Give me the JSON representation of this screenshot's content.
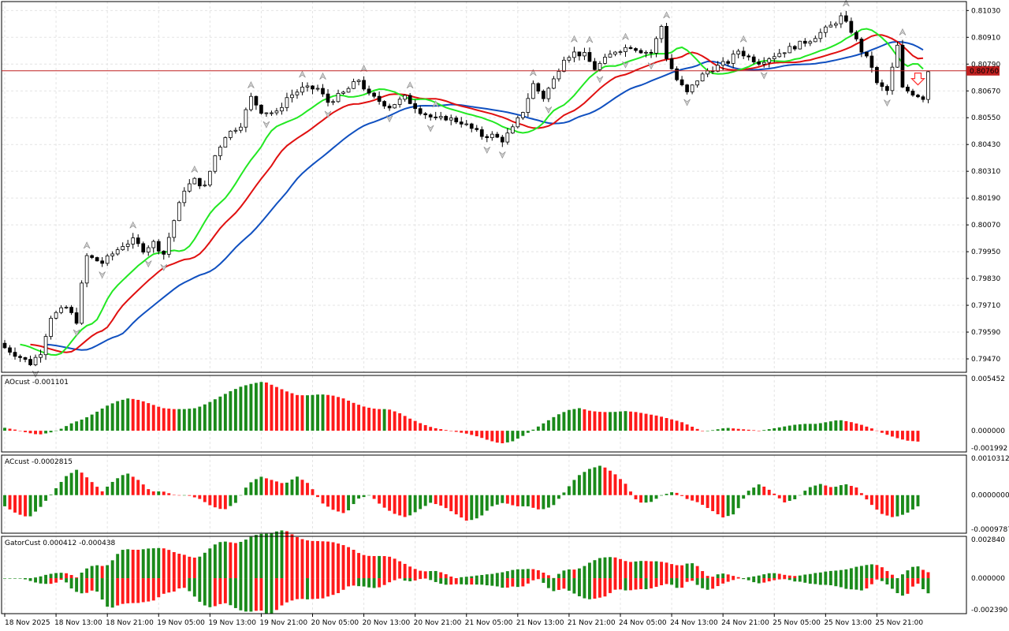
{
  "colors": {
    "bull_candle": "#ffffff",
    "bear_candle": "#000000",
    "lips": "#22e822",
    "teeth": "#e01010",
    "jaw": "#1050c0",
    "hist_up": "#1a8a1a",
    "hist_down": "#ff1a1a",
    "price_line": "#c02020",
    "price_tag": "#c02020",
    "grid": "#e4e4e4"
  },
  "main": {
    "current_price": "0.80760",
    "y_ticks": [
      "0.81030",
      "0.80910",
      "0.80790",
      "0.80670",
      "0.80550",
      "0.80430",
      "0.80310",
      "0.80190",
      "0.80070",
      "0.79950",
      "0.79830",
      "0.79710",
      "0.79590",
      "0.79470"
    ]
  },
  "ao": {
    "label": "AOcust -0.001101",
    "y_ticks": [
      "0.005452",
      "0.000000",
      "-0.001992"
    ]
  },
  "ac": {
    "label": "ACcust -0.0002815",
    "y_ticks": [
      "0.0010312",
      "0.0000000",
      "-0.0009787"
    ]
  },
  "gator": {
    "label": "GatorCust 0.000412 -0.000438",
    "y_ticks": [
      "0.002840",
      "0.000000",
      "-0.002390"
    ]
  },
  "x_ticks": [
    "18 Nov 2025",
    "18 Nov 13:00",
    "18 Nov 21:00",
    "19 Nov 05:00",
    "19 Nov 13:00",
    "19 Nov 21:00",
    "20 Nov 05:00",
    "20 Nov 13:00",
    "20 Nov 21:00",
    "21 Nov 05:00",
    "21 Nov 13:00",
    "21 Nov 21:00",
    "24 Nov 05:00",
    "24 Nov 13:00",
    "24 Nov 21:00",
    "25 Nov 05:00",
    "25 Nov 13:00",
    "25 Nov 21:00"
  ],
  "chart_data": [
    {
      "type": "candlestick",
      "title": "",
      "timeframe_note": "hourly candles",
      "close_path": [
        [
          0,
          0.7952
        ],
        [
          5,
          0.7945
        ],
        [
          7,
          0.795
        ],
        [
          9,
          0.7966
        ],
        [
          12,
          0.797
        ],
        [
          14,
          0.7964
        ],
        [
          15,
          0.798
        ],
        [
          16,
          0.7993
        ],
        [
          19,
          0.799
        ],
        [
          23,
          0.7998
        ],
        [
          25,
          0.8
        ],
        [
          27,
          0.7996
        ],
        [
          29,
          0.7999
        ],
        [
          31,
          0.7994
        ],
        [
          33,
          0.8009
        ],
        [
          35,
          0.8023
        ],
        [
          37,
          0.8027
        ],
        [
          39,
          0.8024
        ],
        [
          41,
          0.8038
        ],
        [
          43,
          0.8047
        ],
        [
          46,
          0.8052
        ],
        [
          48,
          0.8064
        ],
        [
          50,
          0.8058
        ],
        [
          53,
          0.8057
        ],
        [
          55,
          0.8064
        ],
        [
          58,
          0.8068
        ],
        [
          61,
          0.8068
        ],
        [
          63,
          0.8062
        ],
        [
          66,
          0.8066
        ],
        [
          69,
          0.8072
        ],
        [
          71,
          0.8065
        ],
        [
          75,
          0.806
        ],
        [
          78,
          0.8064
        ],
        [
          81,
          0.8058
        ],
        [
          84,
          0.8054
        ],
        [
          86,
          0.8055
        ],
        [
          89,
          0.8053
        ],
        [
          91,
          0.805
        ],
        [
          93,
          0.8047
        ],
        [
          95,
          0.8047
        ],
        [
          97,
          0.8045
        ],
        [
          99,
          0.805
        ],
        [
          101,
          0.8058
        ],
        [
          103,
          0.807
        ],
        [
          105,
          0.8064
        ],
        [
          107,
          0.8072
        ],
        [
          109,
          0.8082
        ],
        [
          111,
          0.8084
        ],
        [
          113,
          0.8083
        ],
        [
          115,
          0.8077
        ],
        [
          117,
          0.8081
        ],
        [
          119,
          0.8085
        ],
        [
          122,
          0.8087
        ],
        [
          124,
          0.8085
        ],
        [
          126,
          0.8084
        ],
        [
          128,
          0.8096
        ],
        [
          129,
          0.8082
        ],
        [
          131,
          0.8072
        ],
        [
          133,
          0.8066
        ],
        [
          135,
          0.8072
        ],
        [
          137,
          0.8076
        ],
        [
          139,
          0.8078
        ],
        [
          141,
          0.808
        ],
        [
          143,
          0.8085
        ],
        [
          145,
          0.8082
        ],
        [
          147,
          0.808
        ],
        [
          149,
          0.8082
        ],
        [
          151,
          0.8084
        ],
        [
          153,
          0.8086
        ],
        [
          155,
          0.8088
        ],
        [
          157,
          0.809
        ],
        [
          159,
          0.8093
        ],
        [
          161,
          0.8096
        ],
        [
          163,
          0.81
        ],
        [
          165,
          0.8094
        ],
        [
          167,
          0.8085
        ],
        [
          169,
          0.8078
        ],
        [
          170,
          0.807
        ],
        [
          172,
          0.8067
        ],
        [
          174,
          0.8087
        ],
        [
          175,
          0.8068
        ],
        [
          177,
          0.8066
        ],
        [
          179,
          0.8064
        ],
        [
          180,
          0.8076
        ]
      ],
      "alligator": {
        "jaw_end": 0.808,
        "teeth_end": 0.8083,
        "lips_end": 0.8077
      },
      "current_price": 0.8076,
      "ylim": [
        0.7941,
        0.8107
      ]
    },
    {
      "type": "bar",
      "name": "AOcust",
      "last_value": -0.001101,
      "ylim": [
        -0.001992,
        0.005452
      ],
      "values_sampled": [
        0.0003,
        0.0001,
        -0.0002,
        -0.0004,
        -0.0002,
        0.0002,
        0.0008,
        0.0012,
        0.0018,
        0.0025,
        0.003,
        0.0033,
        0.0031,
        0.0027,
        0.0023,
        0.0022,
        0.0022,
        0.0023,
        0.0028,
        0.0034,
        0.004,
        0.0045,
        0.0048,
        0.005,
        0.0045,
        0.004,
        0.0036,
        0.0036,
        0.0037,
        0.0036,
        0.0033,
        0.0028,
        0.0024,
        0.0022,
        0.0022,
        0.0018,
        0.0012,
        0.0007,
        0.0003,
        0.0001,
        -0.0001,
        -0.0003,
        -0.0006,
        -0.001,
        -0.0013,
        -0.0011,
        -0.0005,
        0.0002,
        0.0009,
        0.0016,
        0.0021,
        0.0023,
        0.002,
        0.0019,
        0.0019,
        0.002,
        0.0019,
        0.0017,
        0.0015,
        0.0012,
        0.0009,
        0.0004,
        -0.0001,
        0.0001,
        0.0003,
        0.0002,
        0.0001,
        0.0,
        0.0002,
        0.0004,
        0.0006,
        0.0007,
        0.0007,
        0.0009,
        0.0011,
        0.0009,
        0.0006,
        0.0002,
        -0.0003,
        -0.0007,
        -0.001,
        -0.0011
      ]
    },
    {
      "type": "bar",
      "name": "ACcust",
      "last_value": -0.0002815,
      "ylim": [
        -0.0009787,
        0.0010312
      ],
      "values_sampled": [
        -0.0003,
        -0.0005,
        -0.0006,
        -0.0003,
        0.0001,
        0.0005,
        0.0007,
        0.0004,
        0.0001,
        0.0004,
        0.0006,
        0.0004,
        0.0001,
        0.0001,
        0.0,
        0.0,
        -0.0001,
        -0.0003,
        -0.0004,
        -0.0002,
        0.0003,
        0.0005,
        0.0004,
        0.0003,
        0.0005,
        0.0003,
        -0.0002,
        -0.0004,
        -0.0005,
        -0.0001,
        0.0,
        -0.0003,
        -0.0005,
        -0.0006,
        -0.0004,
        -0.0002,
        -0.0003,
        -0.0005,
        -0.0007,
        -0.0006,
        -0.0003,
        -0.0002,
        -0.0003,
        -0.0003,
        -0.0004,
        -0.0003,
        0.0001,
        0.0005,
        0.0007,
        0.0008,
        0.0006,
        0.0003,
        -0.0002,
        -0.0002,
        0.0,
        0.0001,
        -0.0001,
        -0.0002,
        -0.0004,
        -0.0006,
        -0.0005,
        0.0001,
        0.0003,
        0.0001,
        -0.0002,
        -0.0001,
        0.0002,
        0.0003,
        0.0002,
        0.0003,
        0.0002,
        -0.0002,
        -0.0005,
        -0.0006,
        -0.0005,
        -0.0003
      ]
    },
    {
      "type": "bar",
      "name": "GatorCust",
      "upper_value": 0.000412,
      "lower_value": -0.000438,
      "ylim": [
        -0.00239,
        0.00284
      ]
    }
  ]
}
